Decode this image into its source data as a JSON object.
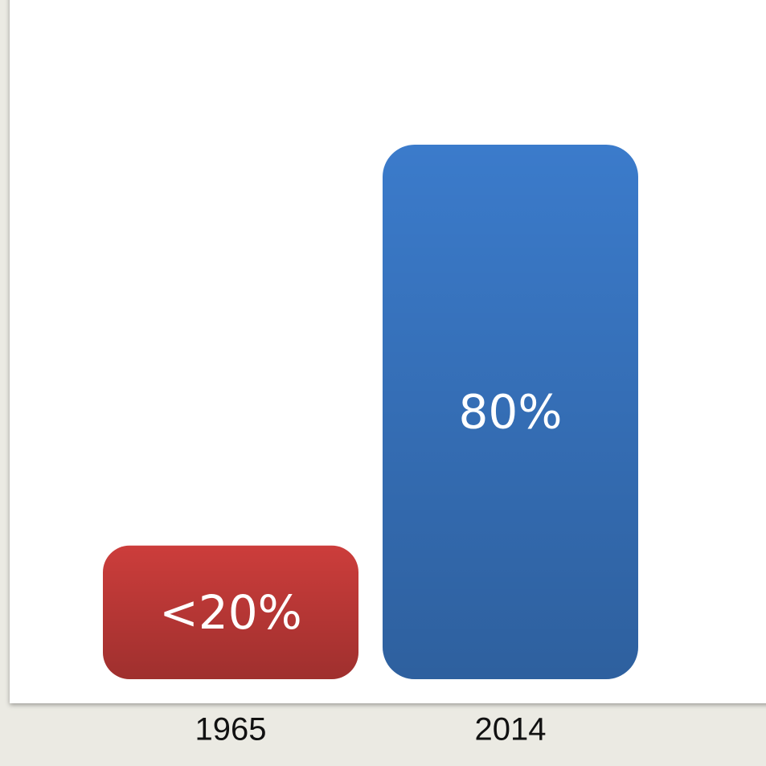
{
  "chart_data": {
    "type": "bar",
    "categories": [
      "1965",
      "2014"
    ],
    "values": [
      20,
      80
    ],
    "value_labels": [
      "<20%",
      "80%"
    ],
    "colors": [
      "#cc3d3b",
      "#3b7bcb"
    ]
  }
}
